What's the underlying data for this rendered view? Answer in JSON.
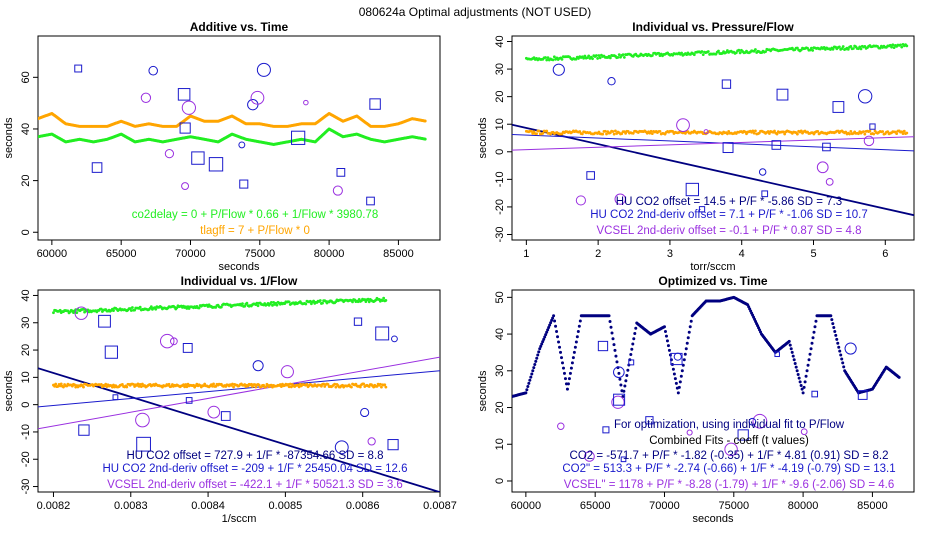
{
  "figure_title": "080624a   Optimal adjustments (NOT USED)",
  "colors": {
    "green": "#22ee22",
    "orange": "#ffa500",
    "navy": "#000080",
    "blue": "#1a1acc",
    "purple": "#9a30e0",
    "axis": "#000000"
  },
  "chart_data": [
    {
      "type": "scatter",
      "title": "Additive vs. Time",
      "xlabel": "seconds",
      "ylabel": "seconds",
      "xlim": [
        59000,
        88000
      ],
      "ylim": [
        -3,
        76
      ],
      "xticks": [
        60000,
        65000,
        70000,
        75000,
        80000,
        85000
      ],
      "yticks": [
        0,
        20,
        40,
        60
      ],
      "series": [
        {
          "name": "co2delay",
          "color": "green",
          "x": [
            59000,
            60000,
            61000,
            62000,
            63000,
            64000,
            65000,
            66000,
            67000,
            68000,
            69000,
            70000,
            71000,
            72000,
            73000,
            74000,
            75000,
            76000,
            77000,
            78000,
            79000,
            80000,
            81000,
            82000,
            83000,
            84000,
            85000,
            86000,
            87000
          ],
          "y": [
            37,
            38,
            35,
            36,
            35,
            36,
            38,
            35,
            36,
            35,
            36,
            37,
            36,
            35,
            38,
            36,
            35,
            34,
            35,
            36,
            35,
            40,
            37,
            38,
            36,
            35,
            36,
            37,
            36
          ]
        },
        {
          "name": "tlagff",
          "color": "orange",
          "x": [
            59000,
            60000,
            61000,
            62000,
            63000,
            64000,
            65000,
            66000,
            67000,
            68000,
            69000,
            70000,
            71000,
            72000,
            73000,
            74000,
            75000,
            76000,
            77000,
            78000,
            79000,
            80000,
            81000,
            82000,
            83000,
            84000,
            85000,
            86000,
            87000
          ],
          "y": [
            44,
            46,
            42,
            41,
            41,
            41,
            43,
            41,
            42,
            41,
            41,
            45,
            43,
            43,
            45,
            42,
            42,
            41,
            41,
            42,
            42,
            46,
            43,
            45,
            41,
            41,
            42,
            44,
            43
          ]
        }
      ],
      "annotations": [
        {
          "text": "co2delay = 0 + P/Flow * 0.66 + 1/Flow * 3980.78",
          "color": "green"
        },
        {
          "text": "tlagff = 7 + P/Flow * 0",
          "color": "orange"
        }
      ]
    },
    {
      "type": "scatter",
      "title": "Individual vs. Pressure/Flow",
      "xlabel": "torr/sccm",
      "ylabel": "seconds",
      "xlim": [
        0.8,
        6.4
      ],
      "ylim": [
        -32,
        42
      ],
      "xticks": [
        1,
        2,
        3,
        4,
        5,
        6
      ],
      "yticks": [
        -30,
        -20,
        -10,
        0,
        10,
        20,
        30,
        40
      ],
      "series": [
        {
          "name": "co2delay",
          "color": "green",
          "x": [
            1,
            6.3
          ],
          "y": [
            33.5,
            38.5
          ]
        },
        {
          "name": "tlagff",
          "color": "orange",
          "x": [
            1,
            6.3
          ],
          "y": [
            7,
            7
          ]
        }
      ],
      "fits": [
        {
          "name": "HU CO2 offset",
          "color": "navy",
          "intercept": 14.5,
          "slope": -5.86
        },
        {
          "name": "HU CO2 2nd-deriv offset",
          "color": "blue",
          "intercept": 7.1,
          "slope": -1.06
        },
        {
          "name": "VCSEL 2nd-deriv offset",
          "color": "purple",
          "intercept": -0.1,
          "slope": 0.87
        }
      ],
      "annotations": [
        {
          "text": "HU CO2 offset = 14.5 + P/F * -5.86  SD = 7.3",
          "color": "navy"
        },
        {
          "text": "HU CO2 2nd-deriv offset = 7.1 + P/F * -1.06  SD = 10.7",
          "color": "blue"
        },
        {
          "text": "VCSEL 2nd-deriv offset = -0.1 + P/F * 0.87  SD = 4.8",
          "color": "purple"
        }
      ]
    },
    {
      "type": "scatter",
      "title": "Individual vs. 1/Flow",
      "xlabel": "1/sccm",
      "ylabel": "seconds",
      "xlim": [
        0.00818,
        0.0087
      ],
      "ylim": [
        -32,
        42
      ],
      "xticks": [
        0.0082,
        0.0083,
        0.0084,
        0.0085,
        0.0086,
        0.0087
      ],
      "yticks": [
        -30,
        -20,
        -10,
        0,
        10,
        20,
        30,
        40
      ],
      "series": [
        {
          "name": "co2delay",
          "color": "green",
          "x": [
            0.0082,
            0.00863
          ],
          "y": [
            34,
            38.5
          ]
        },
        {
          "name": "tlagff",
          "color": "orange",
          "x": [
            0.0082,
            0.00863
          ],
          "y": [
            7,
            7
          ]
        }
      ],
      "fits": [
        {
          "name": "HU CO2 offset",
          "color": "navy",
          "intercept": 727.9,
          "slope": -87354.66
        },
        {
          "name": "HU CO2 2nd-deriv offset",
          "color": "blue",
          "intercept": -209,
          "slope": 25450.04
        },
        {
          "name": "VCSEL 2nd-deriv offset",
          "color": "purple",
          "intercept": -422.1,
          "slope": 50521.3
        }
      ],
      "annotations": [
        {
          "text": "HU CO2 offset = 727.9 + 1/F * -87354.66  SD = 8.8",
          "color": "navy"
        },
        {
          "text": "HU CO2 2nd-deriv offset = -209 + 1/F * 25450.04  SD = 12.6",
          "color": "blue"
        },
        {
          "text": "VCSEL 2nd-deriv offset = -422.1 + 1/F * 50521.3  SD = 3.6",
          "color": "purple"
        }
      ]
    },
    {
      "type": "scatter",
      "title": "Optimized vs. Time",
      "xlabel": "seconds",
      "ylabel": "seconds",
      "xlim": [
        59000,
        88000
      ],
      "ylim": [
        -3,
        52
      ],
      "xticks": [
        60000,
        65000,
        70000,
        75000,
        80000,
        85000
      ],
      "yticks": [
        0,
        10,
        20,
        30,
        40,
        50
      ],
      "series": [
        {
          "name": "optimized",
          "color": "navy",
          "x": [
            59000,
            60000,
            61000,
            62000,
            63000,
            64000,
            65000,
            66000,
            67000,
            68000,
            69000,
            70000,
            71000,
            72000,
            73000,
            74000,
            75000,
            76000,
            77000,
            78000,
            79000,
            80000,
            81000,
            82000,
            83000,
            84000,
            85000,
            86000,
            87000
          ],
          "y": [
            23,
            24,
            36,
            45,
            25,
            45,
            45,
            45,
            23,
            43,
            40,
            42,
            24,
            45,
            49,
            49,
            50,
            48,
            40,
            35,
            38,
            24,
            45,
            45,
            30,
            24,
            25,
            31,
            28
          ]
        }
      ],
      "annotations": [
        {
          "text": "For optimization, using individual fit to P/Flow",
          "color": "navy"
        },
        {
          "text": "Combined Fits - coeff (t values)",
          "color": "axis"
        },
        {
          "text": "CO2 = -571.7 + P/F * -1.82 (-0.35) + 1/F * 4.81 (0.91)  SD = 8.2",
          "color": "navy"
        },
        {
          "text": "CO2\" = 513.3 + P/F * -2.74 (-0.66) + 1/F * -4.19 (-0.79)  SD = 13.1",
          "color": "blue"
        },
        {
          "text": "VCSEL\" = 1178 + P/F * -8.28 (-1.79) + 1/F * -9.6 (-2.06)  SD = 4.6",
          "color": "purple"
        }
      ]
    }
  ]
}
